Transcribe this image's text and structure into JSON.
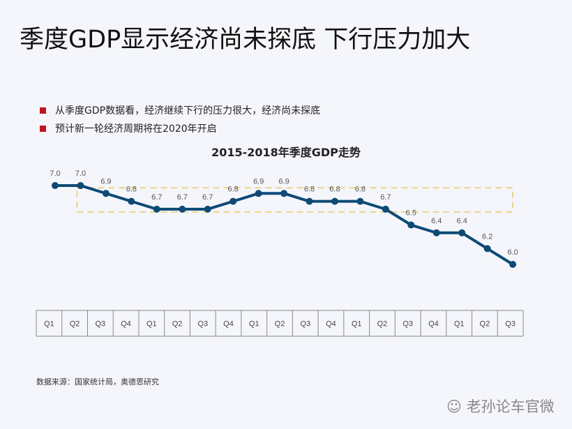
{
  "title": "季度GDP显示经济尚未探底  下行压力加大",
  "bullets": [
    "从季度GDP数据看，经济继续下行的压力很大，经济尚未探底",
    "预计新一轮经济周期将在2020年开启"
  ],
  "source": "数据来源：国家统计局，奥德思研究",
  "watermark": "老孙论车官微",
  "colors": {
    "line": "#0d4a75",
    "highlight_box": "#e8d48a",
    "bullet": "#c0141e"
  },
  "chart_data": {
    "type": "line",
    "title": "2015-2018年季度GDP走势",
    "categories": [
      "Q1",
      "Q2",
      "Q3",
      "Q4",
      "Q1",
      "Q2",
      "Q3",
      "Q4",
      "Q1",
      "Q2",
      "Q3",
      "Q4",
      "Q1",
      "Q2",
      "Q3",
      "Q4",
      "Q1",
      "Q2",
      "Q3"
    ],
    "values": [
      7.0,
      7.0,
      6.9,
      6.8,
      6.7,
      6.7,
      6.7,
      6.8,
      6.9,
      6.9,
      6.8,
      6.8,
      6.8,
      6.7,
      6.5,
      6.4,
      6.4,
      6.2,
      6.0
    ],
    "labels": [
      "7.0",
      "7.0",
      "6.9",
      "6.8",
      "6.7",
      "6.7",
      "6.7",
      "6.8",
      "6.9",
      "6.9",
      "6.8",
      "6.8",
      "6.8",
      "6.7",
      "6.5",
      "6.4",
      "6.4",
      "6.2",
      "6.0"
    ],
    "ylim": [
      6.0,
      7.0
    ],
    "highlight_range": [
      6.7,
      6.9
    ],
    "xlabel": "",
    "ylabel": ""
  }
}
